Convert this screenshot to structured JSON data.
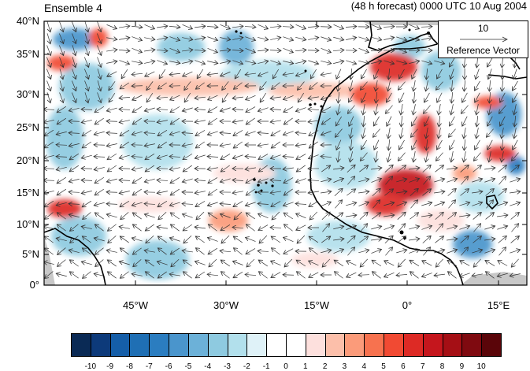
{
  "title_left": "Ensemble 4",
  "title_right": "(48 h forecast) 0000 UTC 10 Aug 2004",
  "map": {
    "y_ticks": [
      "40°N",
      "35°N",
      "30°N",
      "25°N",
      "20°N",
      "15°N",
      "10°N",
      "5°N",
      "0°"
    ],
    "x_ticks": [
      "45°W",
      "30°W",
      "15°W",
      "0°",
      "15°E"
    ],
    "lat_range": [
      0,
      40
    ],
    "lon_range": [
      -60,
      20
    ]
  },
  "reference_vector": {
    "magnitude": "10",
    "label": "Reference Vector"
  },
  "colorbar": {
    "labels": [
      "-10",
      "-9",
      "-8",
      "-7",
      "-6",
      "-5",
      "-4",
      "-3",
      "-2",
      "-1",
      "0",
      "1",
      "2",
      "3",
      "4",
      "5",
      "6",
      "7",
      "8",
      "9",
      "10"
    ],
    "colors": [
      "#0a2a55",
      "#0d3a7a",
      "#155ea8",
      "#1f6fb4",
      "#2b7dc0",
      "#4a95cc",
      "#6cb1d8",
      "#8ecae0",
      "#b2e0ec",
      "#dff2f8",
      "#ffffff",
      "#ffffff",
      "#fde0dd",
      "#fcbfaa",
      "#fb9b7a",
      "#f7724f",
      "#f14a33",
      "#dd2a25",
      "#c5161d",
      "#a50f15",
      "#7f0a10",
      "#5a0509"
    ]
  }
}
